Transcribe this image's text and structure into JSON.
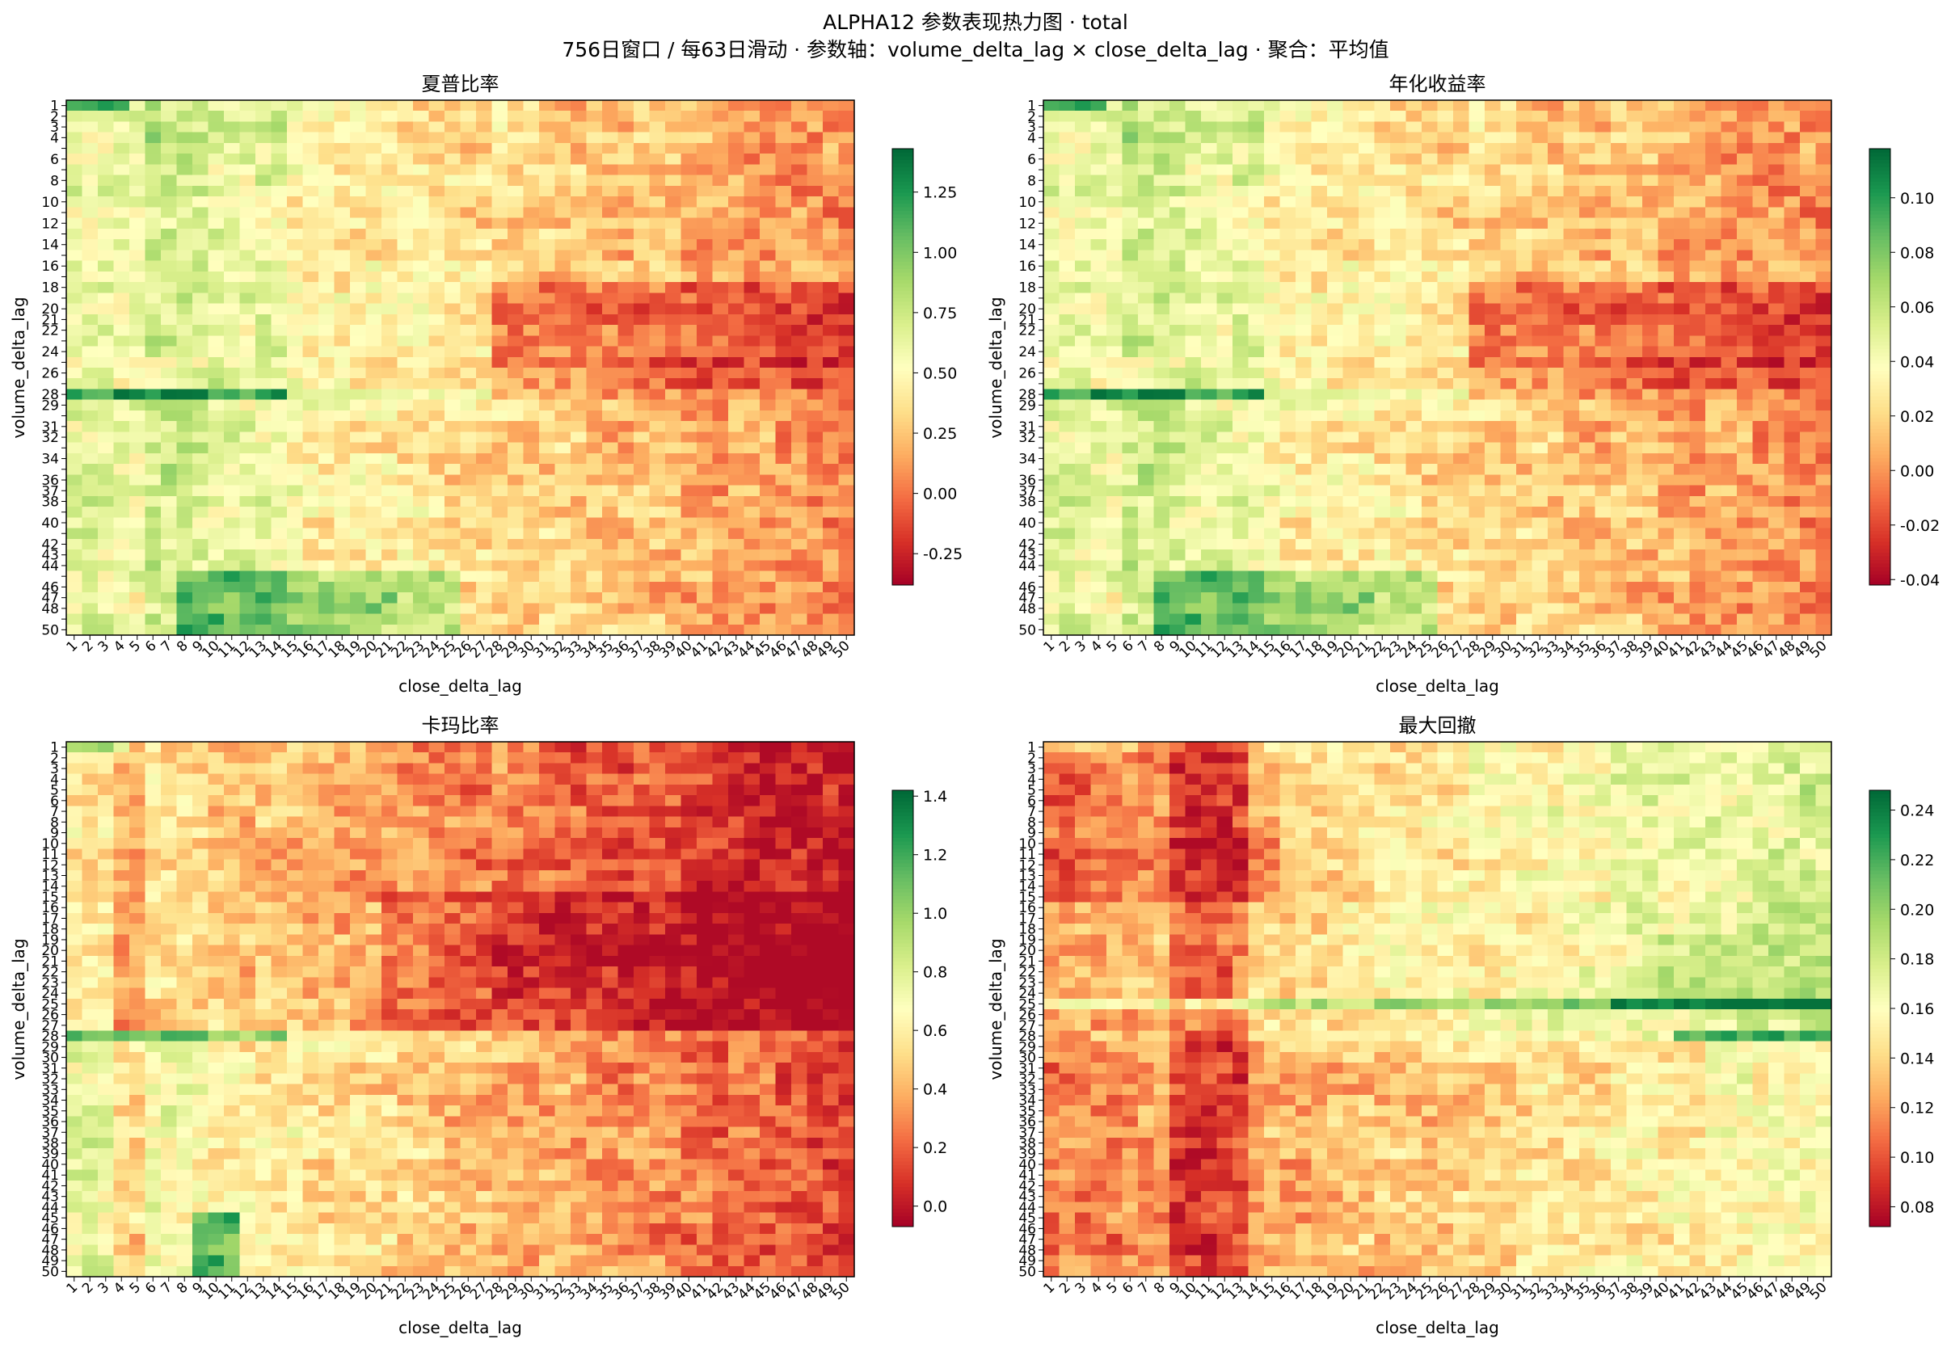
{
  "figure": {
    "title": "ALPHA12 参数表现热力图 · total",
    "subtitle": "756日窗口 / 每63日滑动 · 参数轴：volume_delta_lag × close_delta_lag · 聚合：平均值"
  },
  "colormap": {
    "name": "RdYlGn",
    "stops": [
      "#a50026",
      "#d73027",
      "#f46d43",
      "#fdae61",
      "#fee08b",
      "#ffffbf",
      "#d9ef8b",
      "#a6d96a",
      "#66bd63",
      "#1a9850",
      "#006837"
    ]
  },
  "chart_data": [
    {
      "type": "heatmap",
      "title": "夏普比率",
      "xlabel": "close_delta_lag",
      "ylabel": "volume_delta_lag",
      "x": [
        1,
        2,
        3,
        4,
        5,
        6,
        7,
        8,
        9,
        10,
        11,
        12,
        13,
        14,
        15,
        16,
        17,
        18,
        19,
        20,
        21,
        22,
        23,
        24,
        25,
        26,
        27,
        28,
        29,
        30,
        31,
        32,
        33,
        34,
        35,
        36,
        37,
        38,
        39,
        40,
        41,
        42,
        43,
        44,
        45,
        46,
        47,
        48,
        49,
        50
      ],
      "y": [
        1,
        2,
        3,
        4,
        5,
        6,
        7,
        8,
        9,
        10,
        11,
        12,
        13,
        14,
        15,
        16,
        17,
        18,
        19,
        20,
        21,
        22,
        23,
        24,
        25,
        26,
        27,
        28,
        29,
        30,
        31,
        32,
        33,
        34,
        35,
        36,
        37,
        38,
        39,
        40,
        41,
        42,
        43,
        44,
        45,
        46,
        47,
        48,
        49,
        50
      ],
      "vmin": -0.38,
      "vmax": 1.43,
      "colorbar_ticks": [
        -0.25,
        0.0,
        0.25,
        0.5,
        0.75,
        1.0,
        1.25
      ],
      "colorbar_tick_labels": [
        "-0.25",
        "0.00",
        "0.25",
        "0.50",
        "0.75",
        "1.00",
        "1.25"
      ],
      "pattern": "sharpe",
      "y_tick_labels": [
        "1",
        "2",
        "3",
        "4",
        "6",
        "8",
        "10",
        "12",
        "14",
        "16",
        "18",
        "20",
        "21",
        "22",
        "24",
        "26",
        "28",
        "29",
        "31",
        "32",
        "34",
        "36",
        "37",
        "38",
        "40",
        "42",
        "43",
        "44",
        "46",
        "47",
        "48",
        "50"
      ],
      "grid": false
    },
    {
      "type": "heatmap",
      "title": "年化收益率",
      "xlabel": "close_delta_lag",
      "ylabel": "volume_delta_lag",
      "x": [
        1,
        2,
        3,
        4,
        5,
        6,
        7,
        8,
        9,
        10,
        11,
        12,
        13,
        14,
        15,
        16,
        17,
        18,
        19,
        20,
        21,
        22,
        23,
        24,
        25,
        26,
        27,
        28,
        29,
        30,
        31,
        32,
        33,
        34,
        35,
        36,
        37,
        38,
        39,
        40,
        41,
        42,
        43,
        44,
        45,
        46,
        47,
        48,
        49,
        50
      ],
      "y": [
        1,
        2,
        3,
        4,
        5,
        6,
        7,
        8,
        9,
        10,
        11,
        12,
        13,
        14,
        15,
        16,
        17,
        18,
        19,
        20,
        21,
        22,
        23,
        24,
        25,
        26,
        27,
        28,
        29,
        30,
        31,
        32,
        33,
        34,
        35,
        36,
        37,
        38,
        39,
        40,
        41,
        42,
        43,
        44,
        45,
        46,
        47,
        48,
        49,
        50
      ],
      "vmin": -0.042,
      "vmax": 0.118,
      "colorbar_ticks": [
        -0.04,
        -0.02,
        0.0,
        0.02,
        0.04,
        0.06,
        0.08,
        0.1
      ],
      "colorbar_tick_labels": [
        "-0.04",
        "-0.02",
        "0.00",
        "0.02",
        "0.04",
        "0.06",
        "0.08",
        "0.10"
      ],
      "pattern": "sharpe",
      "y_tick_labels": [
        "1",
        "2",
        "3",
        "4",
        "6",
        "8",
        "10",
        "12",
        "14",
        "16",
        "18",
        "20",
        "21",
        "22",
        "24",
        "26",
        "28",
        "29",
        "31",
        "32",
        "34",
        "36",
        "37",
        "38",
        "40",
        "42",
        "43",
        "44",
        "46",
        "47",
        "48",
        "50"
      ],
      "grid": false
    },
    {
      "type": "heatmap",
      "title": "卡玛比率",
      "xlabel": "close_delta_lag",
      "ylabel": "volume_delta_lag",
      "x": [
        1,
        2,
        3,
        4,
        5,
        6,
        7,
        8,
        9,
        10,
        11,
        12,
        13,
        14,
        15,
        16,
        17,
        18,
        19,
        20,
        21,
        22,
        23,
        24,
        25,
        26,
        27,
        28,
        29,
        30,
        31,
        32,
        33,
        34,
        35,
        36,
        37,
        38,
        39,
        40,
        41,
        42,
        43,
        44,
        45,
        46,
        47,
        48,
        49,
        50
      ],
      "y": [
        1,
        2,
        3,
        4,
        5,
        6,
        7,
        8,
        9,
        10,
        11,
        12,
        13,
        14,
        15,
        16,
        17,
        18,
        19,
        20,
        21,
        22,
        23,
        24,
        25,
        26,
        27,
        28,
        29,
        30,
        31,
        32,
        33,
        34,
        35,
        36,
        37,
        38,
        39,
        40,
        41,
        42,
        43,
        44,
        45,
        46,
        47,
        48,
        49,
        50
      ],
      "vmin": -0.07,
      "vmax": 1.42,
      "colorbar_ticks": [
        0.0,
        0.2,
        0.4,
        0.6,
        0.8,
        1.0,
        1.2,
        1.4
      ],
      "colorbar_tick_labels": [
        "0.0",
        "0.2",
        "0.4",
        "0.6",
        "0.8",
        "1.0",
        "1.2",
        "1.4"
      ],
      "pattern": "calmar",
      "y_tick_labels": [
        "1",
        "2",
        "3",
        "4",
        "5",
        "6",
        "7",
        "8",
        "9",
        "10",
        "11",
        "12",
        "13",
        "14",
        "15",
        "16",
        "17",
        "18",
        "19",
        "20",
        "21",
        "22",
        "23",
        "24",
        "25",
        "26",
        "27",
        "28",
        "29",
        "30",
        "31",
        "32",
        "33",
        "34",
        "35",
        "36",
        "37",
        "38",
        "39",
        "40",
        "41",
        "42",
        "43",
        "44",
        "45",
        "46",
        "47",
        "48",
        "49",
        "50"
      ],
      "grid": false
    },
    {
      "type": "heatmap",
      "title": "最大回撤",
      "xlabel": "close_delta_lag",
      "ylabel": "volume_delta_lag",
      "x": [
        1,
        2,
        3,
        4,
        5,
        6,
        7,
        8,
        9,
        10,
        11,
        12,
        13,
        14,
        15,
        16,
        17,
        18,
        19,
        20,
        21,
        22,
        23,
        24,
        25,
        26,
        27,
        28,
        29,
        30,
        31,
        32,
        33,
        34,
        35,
        36,
        37,
        38,
        39,
        40,
        41,
        42,
        43,
        44,
        45,
        46,
        47,
        48,
        49,
        50
      ],
      "y": [
        1,
        2,
        3,
        4,
        5,
        6,
        7,
        8,
        9,
        10,
        11,
        12,
        13,
        14,
        15,
        16,
        17,
        18,
        19,
        20,
        21,
        22,
        23,
        24,
        25,
        26,
        27,
        28,
        29,
        30,
        31,
        32,
        33,
        34,
        35,
        36,
        37,
        38,
        39,
        40,
        41,
        42,
        43,
        44,
        45,
        46,
        47,
        48,
        49,
        50
      ],
      "vmin": 0.072,
      "vmax": 0.248,
      "colorbar_ticks": [
        0.08,
        0.1,
        0.12,
        0.14,
        0.16,
        0.18,
        0.2,
        0.22,
        0.24
      ],
      "colorbar_tick_labels": [
        "0.08",
        "0.10",
        "0.12",
        "0.14",
        "0.16",
        "0.18",
        "0.20",
        "0.22",
        "0.24"
      ],
      "pattern": "drawdown",
      "y_tick_labels": [
        "1",
        "2",
        "3",
        "4",
        "5",
        "6",
        "7",
        "8",
        "9",
        "10",
        "11",
        "12",
        "13",
        "14",
        "15",
        "16",
        "17",
        "18",
        "19",
        "20",
        "21",
        "22",
        "23",
        "24",
        "25",
        "26",
        "27",
        "28",
        "29",
        "30",
        "31",
        "32",
        "33",
        "34",
        "35",
        "36",
        "37",
        "38",
        "39",
        "40",
        "41",
        "42",
        "43",
        "44",
        "45",
        "46",
        "47",
        "48",
        "49",
        "50"
      ],
      "grid": false
    }
  ]
}
